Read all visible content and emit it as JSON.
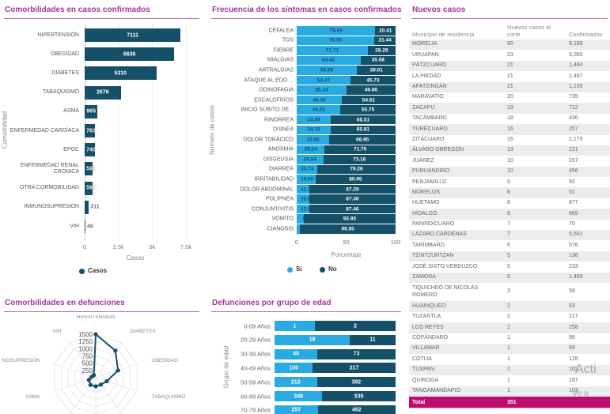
{
  "colors": {
    "title": "#A23897",
    "title_divider": "#C766A8",
    "series_dark": "#155069",
    "series_light": "#29ABE2",
    "total_row_bg": "#BE0C71",
    "row_alt_bg": "#ECECEC",
    "axis_text": "#777777",
    "label_text": "#595959",
    "table_text": "#666666",
    "table_header_text": "#8A8A8A",
    "watermark_text": "#A6A6A6"
  },
  "chart_data": [
    {
      "id": "comorbidities-confirmed-cases",
      "type": "bar",
      "orientation": "horizontal",
      "title": "Comorbilidades en casos confirmados",
      "xlabel": "Casos",
      "ylabel": "Comorbilidad",
      "xlim": [
        0,
        7500
      ],
      "xticks": [
        0,
        2500,
        5000,
        7500
      ],
      "xtick_labels": [
        "0",
        "2.5k",
        "5k",
        "7.5k"
      ],
      "grid": "vertical-dotted",
      "legend_position": "bottom",
      "legend": [
        {
          "label": "Casos",
          "color": "dark"
        }
      ],
      "categories": [
        "HIPERTENSIÓN",
        "OBESIDAD",
        "DIABETES",
        "TABAQUISMO",
        "ASMA",
        "ENFERMEDAD CARDÍACA",
        "EPOC",
        "ENFERMEDAD RENAL CRÓNICA",
        "OTRA CORMOBILIDAD",
        "INMUNOSUPRESIÓN",
        "VIH"
      ],
      "values": [
        7111,
        6636,
        5310,
        2676,
        965,
        763,
        740,
        599,
        580,
        311,
        48
      ]
    },
    {
      "id": "symptom-frequency-confirmed-cases",
      "type": "bar",
      "orientation": "horizontal",
      "stacked": "100%",
      "title": "Frecuencia de los síntomas en casos confirmados",
      "xlabel": "Porcentaje",
      "ylabel": "Número de casos",
      "xlim": [
        0,
        100
      ],
      "xticks": [
        0,
        50,
        100
      ],
      "xtick_labels": [
        "0",
        "50",
        "100"
      ],
      "legend_position": "bottom",
      "legend": [
        {
          "label": "Si",
          "color": "light"
        },
        {
          "label": "No",
          "color": "dark"
        }
      ],
      "categories": [
        "CEFALEA",
        "TOS",
        "FIEBRE",
        "MIALGIAS",
        "ARTRALGIAS",
        "ATAQUE AL EDO ...",
        "ODINOFAGIA",
        "ESCALOFRÍOS",
        "INICIO SÚBITO DE...",
        "RINORREA",
        "DISNEA",
        "DOLOR TORÁCICO",
        "ANOSMIA",
        "DISGEUSIA",
        "DIARREA",
        "IRRITABILIDAD",
        "DOLOR ABDOMINAL",
        "POLIPNEA",
        "CONJUNTIVITIS",
        "VOMITO",
        "CIANOSIS"
      ],
      "series": [
        {
          "name": "Si",
          "values": [
            79.59,
            78.56,
            71.71,
            64.42,
            60.99,
            54.27,
            50.14,
            45.39,
            44.25,
            34.49,
            34.19,
            33.05,
            28.24,
            26.84,
            20.74,
            19.05,
            12.71,
            12.64,
            12.54,
            7.07,
            3.45
          ]
        },
        {
          "name": "No",
          "values": [
            20.41,
            21.44,
            28.29,
            35.58,
            39.01,
            45.73,
            49.86,
            54.61,
            55.75,
            65.51,
            65.81,
            66.95,
            71.76,
            73.16,
            79.26,
            80.95,
            87.29,
            87.36,
            87.46,
            92.93,
            96.55
          ]
        }
      ]
    },
    {
      "id": "comorbidities-deaths",
      "type": "radar",
      "title": "Comorbilidades en defunciones",
      "radial_ticks": [
        0,
        250,
        500,
        750,
        1000,
        1250,
        1500
      ],
      "axes": [
        "HIPERTENSIÓN",
        "DIABETES",
        "OBESIDAD",
        "TABAQUISMO",
        "",
        "",
        "",
        "ASMA",
        "INMUNOSUPRESIÓN",
        "VIH"
      ],
      "values": [
        1500,
        1150,
        810,
        400,
        300,
        300,
        310,
        250,
        130,
        110
      ]
    },
    {
      "id": "deaths-by-age-group",
      "type": "bar",
      "orientation": "horizontal",
      "stacked": "proportional",
      "title": "Defunciones por grupo de edad",
      "ylabel": "Grupo de edad",
      "categories": [
        "0-09 Años",
        "20-29 Años",
        "30-39 Años",
        "40-49 Años",
        "50-59 Años",
        "60-69 Años",
        "70-79 Años"
      ],
      "series": [
        {
          "name": "light",
          "values": [
            1,
            18,
            40,
            100,
            212,
            348,
            257
          ]
        },
        {
          "name": "dark",
          "values": [
            2,
            11,
            73,
            217,
            392,
            535,
            462
          ]
        }
      ]
    }
  ],
  "table": {
    "title": "Nuevos casos",
    "columns": [
      "Municipio de residencia",
      "Nuevos casos al corte",
      "Confirmados"
    ],
    "rows": [
      [
        "MORELIA",
        "60",
        "9,189"
      ],
      [
        "URUAPAN",
        "23",
        "3,050"
      ],
      [
        "PÁTZCUARO",
        "21",
        "1,484"
      ],
      [
        "LA PIEDAD",
        "21",
        "1,497"
      ],
      [
        "APATZINGÁN",
        "21",
        "1,135"
      ],
      [
        "MARAVATÍO",
        "20",
        "735"
      ],
      [
        "ZACAPU",
        "19",
        "712"
      ],
      [
        "TACÁMBARO",
        "18",
        "436"
      ],
      [
        "YURÉCUARO",
        "16",
        "257"
      ],
      [
        "ZITÁCUARO",
        "16",
        "1,179"
      ],
      [
        "ÁLVARO OBREGÓN",
        "13",
        "221"
      ],
      [
        "JUÁREZ",
        "10",
        "157"
      ],
      [
        "PURUÁNDIRO",
        "10",
        "456"
      ],
      [
        "PENJAMILLO",
        "9",
        "92"
      ],
      [
        "MORELOS",
        "8",
        "51"
      ],
      [
        "HUETAMO",
        "8",
        "877"
      ],
      [
        "HIDALGO",
        "8",
        "669"
      ],
      [
        "PANINDÍCUARO",
        "7",
        "70"
      ],
      [
        "LÁZARO CÁRDENAS",
        "7",
        "5,501"
      ],
      [
        "TARÍMBARO",
        "6",
        "576"
      ],
      [
        "TZINTZUNTZAN",
        "5",
        "138"
      ],
      [
        "JOSÉ SIXTO VERDUZCO",
        "5",
        "233"
      ],
      [
        "ZAMORA",
        "5",
        "1,459"
      ],
      [
        "TIQUICHEO DE NICOLÁS ROMERO",
        "3",
        "59"
      ],
      [
        "HUANIQUEO",
        "2",
        "53"
      ],
      [
        "TUZANTLA",
        "2",
        "217"
      ],
      [
        "LOS REYES",
        "2",
        "258"
      ],
      [
        "COPÁNDARO",
        "1",
        "99"
      ],
      [
        "VILLAMAR",
        "1",
        "68"
      ],
      [
        "COTIJA",
        "1",
        "128"
      ],
      [
        "TUXPAN",
        "1",
        "102"
      ],
      [
        "QUIROGA",
        "1",
        "187"
      ],
      [
        "TANGAMANDAPIO",
        "1",
        "103"
      ]
    ],
    "total_row": {
      "label": "Total",
      "new_cases": "351"
    }
  },
  "watermark": {
    "line1": "Acti",
    "line2": "Ve a"
  }
}
